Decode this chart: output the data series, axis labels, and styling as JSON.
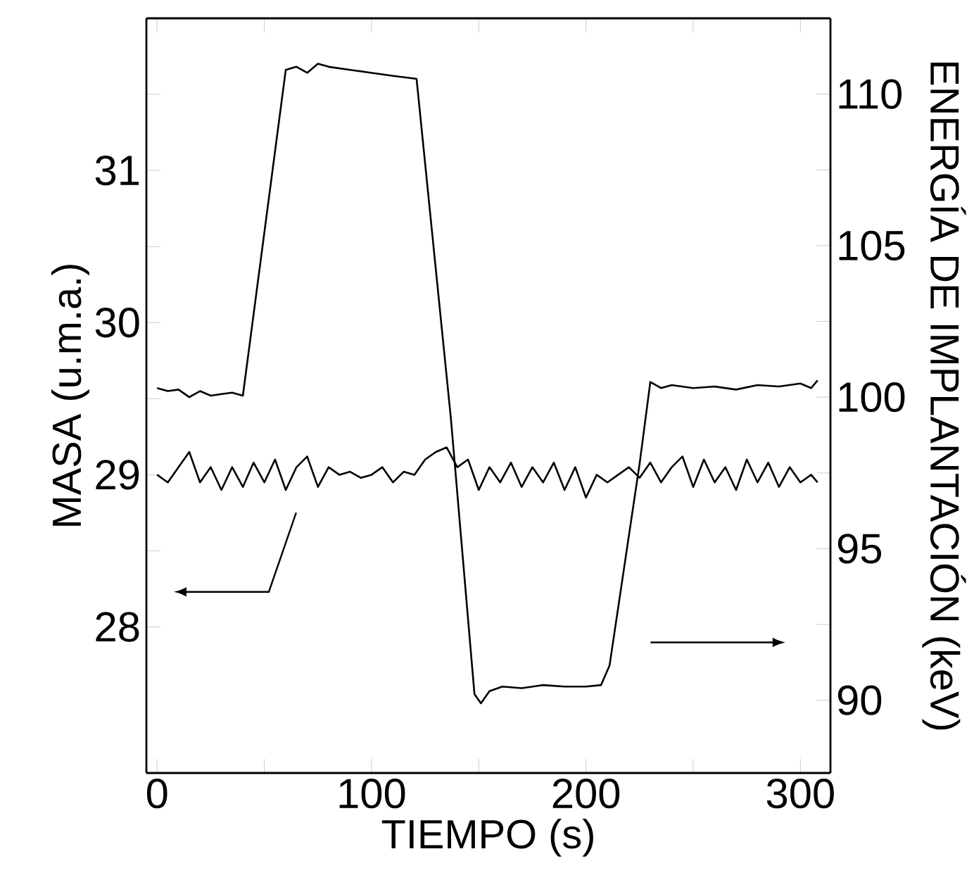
{
  "chart_data": {
    "type": "line",
    "xlabel": "TIEMPO (s)",
    "ylabel": "MASA (u.m.a.)",
    "y2label": "ENERGÍA DE IMPLANTACIÓN (keV)",
    "xlim": [
      -5,
      314
    ],
    "ylim": [
      27.04,
      32.0
    ],
    "y2lim": [
      87.6,
      112.5
    ],
    "xticks": [
      0,
      {
        "value": 50,
        "label": null
      },
      100,
      {
        "value": 150,
        "label": null
      },
      200,
      {
        "value": 250,
        "label": null
      },
      300
    ],
    "yticks": [
      28,
      {
        "value": 28.5,
        "label": null
      },
      29,
      {
        "value": 29.5,
        "label": null
      },
      30,
      {
        "value": 30.5,
        "label": null
      },
      31,
      {
        "value": 31.5,
        "label": null
      }
    ],
    "y2ticks": [
      90,
      {
        "value": 92.5,
        "label": null
      },
      95,
      {
        "value": 97.5,
        "label": null
      },
      100,
      {
        "value": 102.5,
        "label": null
      },
      105,
      {
        "value": 107.5,
        "label": null
      },
      110
    ],
    "marker": "none",
    "line_style": "solid",
    "series": [
      {
        "axis": "y",
        "color": "#000000",
        "x": [
          0,
          5,
          10,
          15,
          20,
          25,
          30,
          35,
          40,
          45,
          50,
          55,
          60,
          65,
          70,
          75,
          80,
          85,
          90,
          95,
          100,
          105,
          110,
          115,
          120,
          125,
          130,
          135,
          140,
          145,
          150,
          155,
          160,
          165,
          170,
          175,
          180,
          185,
          190,
          195,
          200,
          205,
          210,
          215,
          220,
          225,
          230,
          235,
          240,
          245,
          250,
          255,
          260,
          265,
          270,
          275,
          280,
          285,
          290,
          295,
          300,
          305,
          308
        ],
        "values": [
          29.0,
          28.95,
          29.05,
          29.15,
          28.95,
          29.05,
          28.9,
          29.05,
          28.92,
          29.08,
          28.95,
          29.1,
          28.9,
          29.05,
          29.12,
          28.92,
          29.05,
          29.0,
          29.02,
          28.98,
          29.0,
          29.05,
          28.95,
          29.02,
          29.0,
          29.1,
          29.15,
          29.18,
          29.05,
          29.1,
          28.9,
          29.05,
          28.95,
          29.08,
          28.92,
          29.05,
          28.95,
          29.08,
          28.9,
          29.05,
          28.85,
          29.0,
          28.95,
          29.0,
          29.05,
          28.98,
          29.08,
          28.95,
          29.05,
          29.12,
          28.92,
          29.1,
          28.95,
          29.05,
          28.9,
          29.1,
          28.95,
          29.08,
          28.92,
          29.05,
          28.95,
          29.0,
          28.95
        ]
      },
      {
        "axis": "y2",
        "color": "#000000",
        "x": [
          0,
          5,
          10,
          15,
          20,
          25,
          30,
          35,
          40,
          60,
          65,
          70,
          75,
          80,
          90,
          100,
          110,
          121,
          137,
          148,
          151,
          155,
          161,
          170,
          180,
          190,
          200,
          207,
          211,
          225,
          230,
          235,
          240,
          250,
          260,
          270,
          280,
          290,
          300,
          305,
          308
        ],
        "values": [
          100.3,
          100.2,
          100.25,
          100.0,
          100.2,
          100.05,
          100.1,
          100.15,
          100.05,
          110.8,
          110.9,
          110.7,
          111.0,
          110.9,
          110.8,
          110.7,
          110.6,
          110.5,
          99.3,
          90.2,
          89.9,
          90.3,
          90.45,
          90.4,
          90.5,
          90.45,
          90.45,
          90.5,
          91.15,
          97.8,
          100.5,
          100.3,
          100.4,
          100.3,
          100.35,
          100.25,
          100.4,
          100.35,
          100.45,
          100.3,
          100.55
        ]
      }
    ]
  }
}
